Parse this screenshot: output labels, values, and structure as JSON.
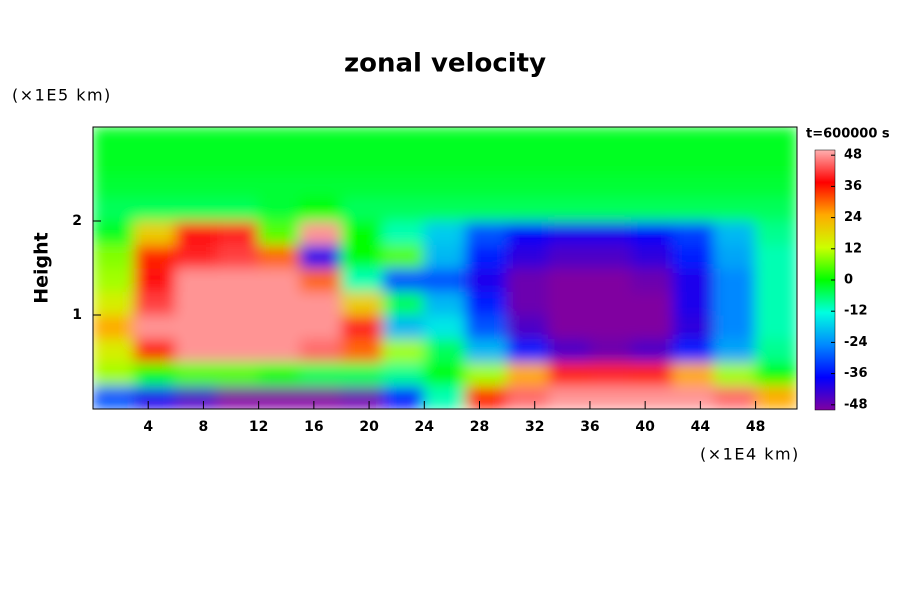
{
  "chart_data": {
    "type": "heatmap",
    "title": "zonal velocity",
    "y_unit": "(×1E5 km)",
    "ylabel": "Height",
    "x_unit": "(×1E4 km)",
    "time_label": "t=600000 s",
    "xlim": [
      0,
      51
    ],
    "ylim": [
      0,
      3
    ],
    "xticks": [
      4,
      8,
      12,
      16,
      20,
      24,
      28,
      32,
      36,
      40,
      44,
      48
    ],
    "yticks": [
      1,
      2
    ],
    "clim": [
      -50,
      50
    ],
    "cticks": [
      -48,
      -36,
      -24,
      -12,
      0,
      12,
      24,
      36,
      48
    ],
    "colormap": [
      "#8000a0",
      "#0000ff",
      "#0088ff",
      "#00ffe0",
      "#00ff00",
      "#ccff00",
      "#ffaa00",
      "#ff0000",
      "#ffb0b0"
    ],
    "x": [
      1.5,
      4.5,
      7.5,
      10.5,
      13.5,
      16.5,
      19.5,
      22.5,
      25.5,
      28.5,
      31.5,
      34.5,
      37.5,
      40.5,
      43.5,
      46.5,
      49.5
    ],
    "y": [
      0.125,
      0.375,
      0.625,
      0.875,
      1.125,
      1.375,
      1.625,
      1.875,
      2.125,
      2.375,
      2.625,
      2.875
    ],
    "z": [
      [
        -30,
        -40,
        -45,
        -50,
        -50,
        -50,
        -48,
        -35,
        -10,
        35,
        45,
        48,
        48,
        48,
        48,
        45,
        25
      ],
      [
        10,
        0,
        5,
        5,
        0,
        -5,
        -5,
        -8,
        0,
        10,
        25,
        35,
        40,
        35,
        25,
        10,
        0
      ],
      [
        15,
        35,
        48,
        48,
        48,
        45,
        30,
        10,
        -5,
        -20,
        -35,
        -45,
        -48,
        -45,
        -35,
        -22,
        -8
      ],
      [
        25,
        48,
        48,
        48,
        48,
        48,
        40,
        -20,
        -15,
        -30,
        -45,
        -50,
        -50,
        -50,
        -42,
        -25,
        -10
      ],
      [
        15,
        42,
        48,
        48,
        48,
        48,
        20,
        -5,
        -20,
        -35,
        -48,
        -50,
        -50,
        -50,
        -40,
        -25,
        -10
      ],
      [
        10,
        38,
        48,
        48,
        48,
        30,
        -10,
        -30,
        -30,
        -40,
        -48,
        -50,
        -50,
        -48,
        -40,
        -25,
        -10
      ],
      [
        8,
        35,
        40,
        42,
        30,
        -40,
        0,
        5,
        -20,
        -35,
        -42,
        -45,
        -45,
        -42,
        -35,
        -22,
        -10
      ],
      [
        -2,
        20,
        38,
        40,
        5,
        48,
        0,
        -10,
        -18,
        -30,
        -38,
        -40,
        -40,
        -38,
        -32,
        -20,
        -8
      ],
      [
        -5,
        -5,
        -5,
        -5,
        -3,
        0,
        -5,
        -5,
        -5,
        -5,
        -5,
        -5,
        -5,
        -5,
        -5,
        -5,
        -5
      ],
      [
        -3,
        -3,
        -3,
        -3,
        -3,
        -3,
        -3,
        -3,
        -3,
        -3,
        -3,
        -3,
        -3,
        -3,
        -3,
        -3,
        -3
      ],
      [
        -2,
        -2,
        -2,
        -2,
        -2,
        -2,
        -2,
        -2,
        -2,
        -2,
        -2,
        -2,
        -2,
        -2,
        -2,
        -2,
        -2
      ],
      [
        -2,
        -2,
        -2,
        -2,
        -2,
        -2,
        -2,
        -2,
        -2,
        -2,
        -2,
        -2,
        -2,
        -2,
        -2,
        -2,
        -2
      ]
    ]
  }
}
